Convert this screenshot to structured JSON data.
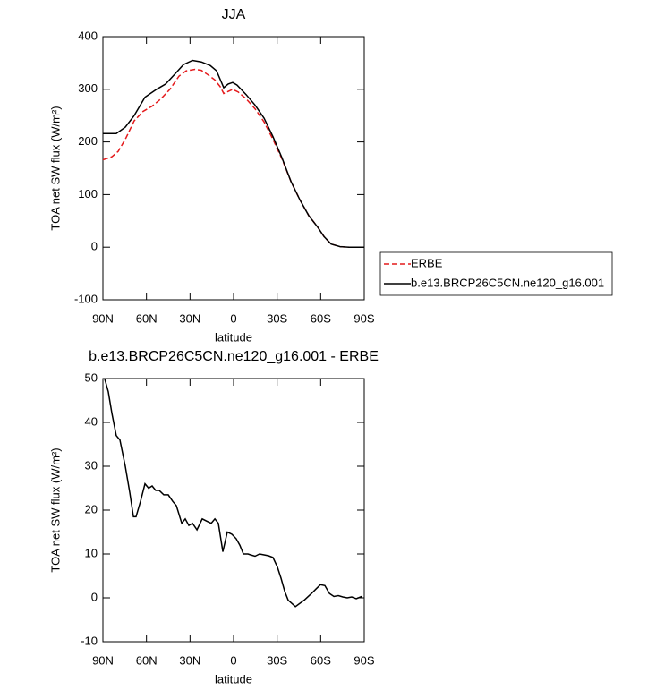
{
  "chart_data": [
    {
      "type": "line",
      "title": "JJA",
      "xlabel": "latitude",
      "ylabel": "TOA net SW flux (W/m²)",
      "xlim": [
        90,
        -90
      ],
      "xticks": [
        {
          "value": 90,
          "label": "90N"
        },
        {
          "value": 60,
          "label": "60N"
        },
        {
          "value": 30,
          "label": "30N"
        },
        0,
        {
          "value": -30,
          "label": "30S"
        },
        {
          "value": -60,
          "label": "60S"
        },
        {
          "value": -90,
          "label": "90S"
        }
      ],
      "ylim": [
        -100,
        400
      ],
      "yticks": [
        -100,
        0,
        100,
        200,
        300,
        400
      ],
      "legend": "right",
      "series": [
        {
          "name": "ERBE",
          "color": "#e41a1c",
          "dash": true,
          "x": [
            90,
            83.8,
            79.5,
            74.6,
            68.5,
            62.3,
            56.1,
            50.0,
            43.8,
            37.6,
            32.7,
            26.5,
            22.2,
            17.9,
            13.0,
            9.2,
            6.8,
            3.7,
            0.6,
            -3.1,
            -8.6,
            -14.8,
            -21.0,
            -27.1,
            -33.3,
            -39.5,
            -45.7,
            -51.8,
            -58.0,
            -62.3,
            -67.2,
            -73.4,
            -79.5,
            -90
          ],
          "values": [
            166,
            172,
            182,
            205,
            240,
            258,
            268,
            282,
            300,
            325,
            335,
            338,
            336,
            328,
            318,
            305,
            292,
            296,
            300,
            295,
            282,
            263,
            238,
            205,
            168,
            125,
            90,
            60,
            38,
            20,
            6,
            1,
            0,
            0
          ]
        },
        {
          "name": "b.e13.BRCP26C5CN.ne120_g16.001",
          "color": "#000000",
          "dash": false,
          "x": [
            90,
            80.8,
            74.6,
            68.5,
            61.0,
            53.0,
            46.8,
            40.7,
            34.5,
            28.3,
            22.2,
            16.0,
            11.7,
            8.6,
            6.8,
            3.7,
            0.6,
            -2.4,
            -8.6,
            -14.8,
            -21.0,
            -27.1,
            -33.3,
            -39.5,
            -45.7,
            -51.8,
            -58.0,
            -62.3,
            -67.2,
            -73.4,
            -79.5,
            -90
          ],
          "values": [
            216,
            216,
            228,
            250,
            285,
            300,
            310,
            328,
            347,
            355,
            352,
            345,
            335,
            315,
            303,
            310,
            313,
            308,
            290,
            270,
            245,
            210,
            170,
            125,
            90,
            60,
            38,
            20,
            6,
            1,
            0,
            0
          ]
        }
      ]
    },
    {
      "type": "line",
      "title": "b.e13.BRCP26C5CN.ne120_g16.001 - ERBE",
      "xlabel": "latitude",
      "ylabel": "TOA net SW flux (W/m²)",
      "xlim": [
        90,
        -90
      ],
      "xticks": [
        {
          "value": 90,
          "label": "90N"
        },
        {
          "value": 60,
          "label": "60N"
        },
        {
          "value": 30,
          "label": "30N"
        },
        0,
        {
          "value": -30,
          "label": "30S"
        },
        {
          "value": -60,
          "label": "60S"
        },
        {
          "value": -90,
          "label": "90S"
        }
      ],
      "ylim": [
        -10,
        50
      ],
      "yticks": [
        -10,
        0,
        10,
        20,
        30,
        40,
        50
      ],
      "series": [
        {
          "color": "#000000",
          "x": [
            88.8,
            86.3,
            83.8,
            80.8,
            78.3,
            74.6,
            71.5,
            69.0,
            67.2,
            64.1,
            61.0,
            58.5,
            56.1,
            53.6,
            51.2,
            48.1,
            45.0,
            41.9,
            39.4,
            35.7,
            33.3,
            30.8,
            28.3,
            25.2,
            21.6,
            18.5,
            15.4,
            12.9,
            10.5,
            7.4,
            4.3,
            1.2,
            -1.8,
            -4.3,
            -6.8,
            -9.9,
            -11.7,
            -14.8,
            -17.9,
            -21.0,
            -24.1,
            -27.1,
            -30.2,
            -32.7,
            -35.2,
            -37.6,
            -42.6,
            -48.7,
            -53.7,
            -56.7,
            -59.8,
            -62.9,
            -66.0,
            -69.1,
            -72.1,
            -75.2,
            -78.3,
            -81.4,
            -84.5,
            -88.2
          ],
          "values": [
            50,
            47,
            42,
            37,
            36,
            30,
            24,
            18.5,
            18.5,
            22,
            26,
            25,
            25.5,
            24.5,
            24.5,
            23.5,
            23.5,
            22,
            21,
            17,
            18,
            16.5,
            17,
            15.5,
            18,
            17.5,
            17,
            18,
            17,
            10.5,
            15,
            14.5,
            13.5,
            12,
            10,
            10,
            9.8,
            9.5,
            10,
            9.8,
            9.6,
            9.2,
            7,
            4.5,
            1.5,
            -0.5,
            -2,
            -0.5,
            1,
            2,
            3,
            2.8,
            1,
            0.3,
            0.5,
            0.2,
            0,
            0.2,
            -0.2,
            0.3
          ]
        }
      ]
    }
  ]
}
